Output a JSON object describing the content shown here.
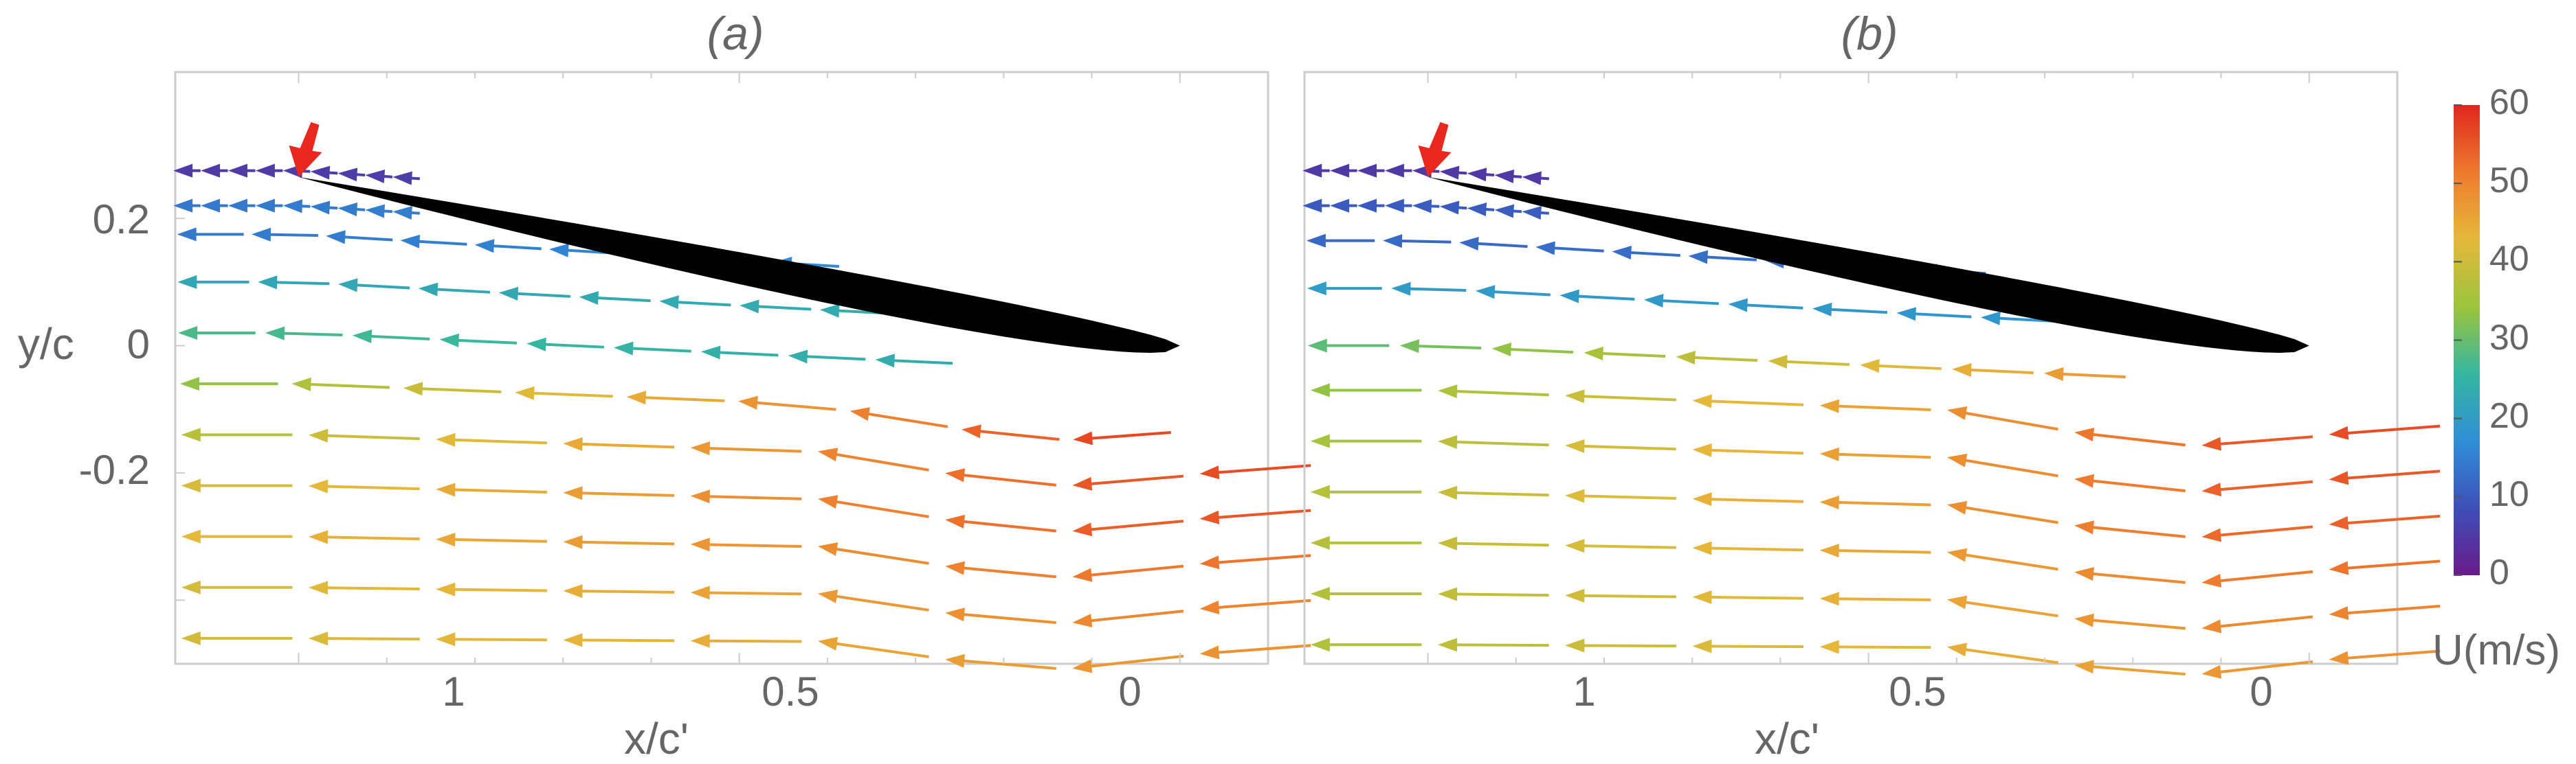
{
  "chart_data": {
    "type": "vector-field",
    "panels": [
      {
        "title": "(a)",
        "xlabel": "x/c'",
        "ylabel": "y/c",
        "x_ticks": [
          "1",
          "0.5",
          "0"
        ],
        "y_ticks": [
          "0.2",
          "0",
          "-0.2"
        ],
        "xlim": [
          1.14,
          -0.1
        ],
        "ylim": [
          -0.5,
          0.43
        ],
        "x_reversed": true,
        "marker": {
          "type": "arrow",
          "color": "#e8281f",
          "points_to": [
            1.0,
            0.265
          ]
        },
        "airfoil": {
          "leading_edge": [
            0.0,
            0.0
          ],
          "trailing_edge": [
            1.0,
            0.265
          ]
        },
        "streamlines": [
          {
            "y0": 0.275,
            "x_range": [
              1.14,
              0.86
            ],
            "speed_le": 8,
            "speed_te": 5
          },
          {
            "y0": 0.22,
            "x_range": [
              1.14,
              0.86
            ],
            "speed_le": 18,
            "speed_te": 14
          },
          {
            "y0": 0.175,
            "x_range": [
              1.14,
              0.38
            ],
            "speed_le": 18,
            "speed_te": 14
          },
          {
            "y0": 0.1,
            "x_range": [
              1.14,
              0.32
            ],
            "speed_le": 24,
            "speed_te": 22
          },
          {
            "y0": 0.02,
            "x_range": [
              1.14,
              0.25
            ],
            "speed_le": 22,
            "speed_te": 28
          },
          {
            "y0": -0.06,
            "x_range": [
              1.14,
              0.0
            ],
            "speed_le": 58,
            "speed_te": 32
          },
          {
            "y0": -0.14,
            "x_range": [
              1.14,
              -0.16
            ],
            "speed_le": 56,
            "speed_te": 36
          },
          {
            "y0": -0.22,
            "x_range": [
              1.14,
              -0.16
            ],
            "speed_le": 55,
            "speed_te": 40
          },
          {
            "y0": -0.3,
            "x_range": [
              1.14,
              -0.16
            ],
            "speed_le": 52,
            "speed_te": 42
          },
          {
            "y0": -0.38,
            "x_range": [
              1.14,
              -0.16
            ],
            "speed_le": 50,
            "speed_te": 40
          },
          {
            "y0": -0.46,
            "x_range": [
              1.14,
              -0.16
            ],
            "speed_le": 48,
            "speed_te": 40
          }
        ]
      },
      {
        "title": "(b)",
        "xlabel": "x/c'",
        "ylabel": "",
        "x_ticks": [
          "1",
          "0.5",
          "0"
        ],
        "y_ticks": [],
        "xlim": [
          1.14,
          -0.1
        ],
        "ylim": [
          -0.5,
          0.43
        ],
        "x_reversed": true,
        "marker": {
          "type": "arrow",
          "color": "#e8281f",
          "points_to": [
            1.0,
            0.265
          ]
        },
        "airfoil": {
          "leading_edge": [
            0.0,
            0.0
          ],
          "trailing_edge": [
            1.0,
            0.265
          ]
        },
        "streamlines": [
          {
            "y0": 0.275,
            "x_range": [
              1.14,
              0.86
            ],
            "speed_le": 5,
            "speed_te": 5
          },
          {
            "y0": 0.22,
            "x_range": [
              1.14,
              0.86
            ],
            "speed_le": 12,
            "speed_te": 10
          },
          {
            "y0": 0.165,
            "x_range": [
              1.14,
              0.36
            ],
            "speed_le": 14,
            "speed_te": 12
          },
          {
            "y0": 0.09,
            "x_range": [
              1.14,
              0.28
            ],
            "speed_le": 18,
            "speed_te": 20
          },
          {
            "y0": 0.0,
            "x_range": [
              1.14,
              0.2
            ],
            "speed_le": 52,
            "speed_te": 28
          },
          {
            "y0": -0.07,
            "x_range": [
              1.14,
              -0.16
            ],
            "speed_le": 56,
            "speed_te": 32
          },
          {
            "y0": -0.15,
            "x_range": [
              1.14,
              -0.16
            ],
            "speed_le": 55,
            "speed_te": 34
          },
          {
            "y0": -0.23,
            "x_range": [
              1.14,
              -0.16
            ],
            "speed_le": 54,
            "speed_te": 36
          },
          {
            "y0": -0.31,
            "x_range": [
              1.14,
              -0.16
            ],
            "speed_le": 52,
            "speed_te": 36
          },
          {
            "y0": -0.39,
            "x_range": [
              1.14,
              -0.16
            ],
            "speed_le": 50,
            "speed_te": 36
          },
          {
            "y0": -0.47,
            "x_range": [
              1.14,
              -0.16
            ],
            "speed_le": 48,
            "speed_te": 36
          }
        ]
      }
    ],
    "colorbar": {
      "title": "U(m/s)",
      "min": 0,
      "max": 60,
      "tick_labels": [
        "60",
        "50",
        "40",
        "30",
        "20",
        "10",
        "0"
      ],
      "colormap": [
        "#6a1b8a",
        "#3d4fb8",
        "#2f8fd6",
        "#35b6a0",
        "#9cc43c",
        "#e6b83a",
        "#ee7a2e",
        "#e0261d"
      ]
    }
  }
}
